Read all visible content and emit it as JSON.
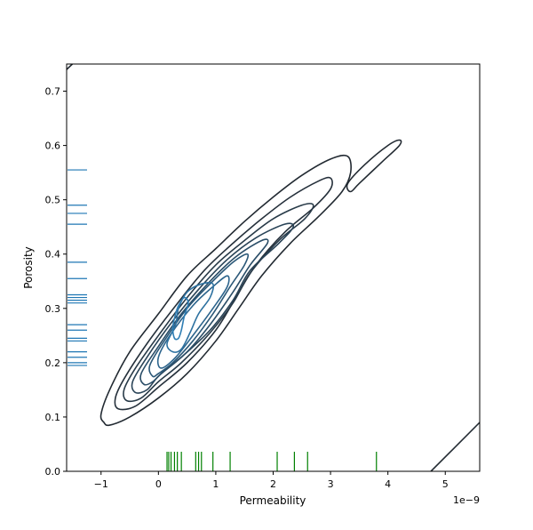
{
  "chart_data": {
    "type": "kde-contour",
    "xlabel": "Permeability",
    "ylabel": "Porosity",
    "x_offset_label": "1e−9",
    "xlim": [
      -1.6,
      5.6
    ],
    "ylim": [
      0.0,
      0.75
    ],
    "x_scale_factor": 1e-09,
    "grid": false,
    "xticks": [
      {
        "value": -1,
        "label": "−1"
      },
      {
        "value": 0,
        "label": "0"
      },
      {
        "value": 1,
        "label": "1"
      },
      {
        "value": 2,
        "label": "2"
      },
      {
        "value": 3,
        "label": "3"
      },
      {
        "value": 4,
        "label": "4"
      },
      {
        "value": 5,
        "label": "5"
      }
    ],
    "yticks": [
      {
        "value": 0.0,
        "label": "0.0"
      },
      {
        "value": 0.1,
        "label": "0.1"
      },
      {
        "value": 0.2,
        "label": "0.2"
      },
      {
        "value": 0.3,
        "label": "0.3"
      },
      {
        "value": 0.4,
        "label": "0.4"
      },
      {
        "value": 0.5,
        "label": "0.5"
      },
      {
        "value": 0.6,
        "label": "0.6"
      },
      {
        "value": 0.7,
        "label": "0.7"
      }
    ],
    "contour_colors": [
      "#222a32",
      "#25303b",
      "#283a48",
      "#294357",
      "#2a4d67",
      "#2b5878",
      "#2c648c",
      "#2d71a0",
      "#2f7eb4"
    ],
    "contours": [
      {
        "level": 0,
        "closed": true,
        "points": [
          [
            -0.95,
            0.09
          ],
          [
            -1.0,
            0.105
          ],
          [
            -0.85,
            0.15
          ],
          [
            -0.5,
            0.22
          ],
          [
            0.0,
            0.29
          ],
          [
            0.5,
            0.36
          ],
          [
            1.0,
            0.41
          ],
          [
            1.5,
            0.46
          ],
          [
            2.0,
            0.505
          ],
          [
            2.5,
            0.545
          ],
          [
            3.0,
            0.575
          ],
          [
            3.3,
            0.58
          ],
          [
            3.35,
            0.55
          ],
          [
            3.2,
            0.515
          ],
          [
            2.8,
            0.47
          ],
          [
            2.3,
            0.42
          ],
          [
            1.8,
            0.36
          ],
          [
            1.4,
            0.3
          ],
          [
            1.0,
            0.24
          ],
          [
            0.5,
            0.18
          ],
          [
            0.0,
            0.135
          ],
          [
            -0.5,
            0.1
          ],
          [
            -0.85,
            0.085
          ]
        ]
      },
      {
        "level": 0,
        "closed": true,
        "points": [
          [
            3.35,
            0.515
          ],
          [
            3.3,
            0.53
          ],
          [
            3.6,
            0.565
          ],
          [
            4.0,
            0.6
          ],
          [
            4.2,
            0.61
          ],
          [
            4.2,
            0.6
          ],
          [
            3.9,
            0.57
          ],
          [
            3.5,
            0.53
          ]
        ]
      },
      {
        "level": 0,
        "closed": false,
        "points": [
          [
            -1.6,
            0.74
          ],
          [
            -1.5,
            0.75
          ]
        ]
      },
      {
        "level": 0,
        "closed": false,
        "points": [
          [
            4.75,
            0.0
          ],
          [
            5.6,
            0.09
          ]
        ]
      },
      {
        "level": 1,
        "closed": true,
        "points": [
          [
            -0.7,
            0.115
          ],
          [
            -0.75,
            0.135
          ],
          [
            -0.6,
            0.17
          ],
          [
            -0.2,
            0.235
          ],
          [
            0.3,
            0.305
          ],
          [
            0.8,
            0.37
          ],
          [
            1.3,
            0.42
          ],
          [
            1.8,
            0.465
          ],
          [
            2.3,
            0.505
          ],
          [
            2.8,
            0.535
          ],
          [
            3.0,
            0.54
          ],
          [
            3.0,
            0.52
          ],
          [
            2.7,
            0.485
          ],
          [
            2.2,
            0.44
          ],
          [
            1.7,
            0.38
          ],
          [
            1.35,
            0.32
          ],
          [
            1.0,
            0.26
          ],
          [
            0.5,
            0.2
          ],
          [
            0.0,
            0.155
          ],
          [
            -0.4,
            0.12
          ]
        ]
      },
      {
        "level": 2,
        "closed": true,
        "points": [
          [
            -0.55,
            0.13
          ],
          [
            -0.6,
            0.15
          ],
          [
            -0.4,
            0.19
          ],
          [
            0.0,
            0.25
          ],
          [
            0.5,
            0.32
          ],
          [
            1.0,
            0.38
          ],
          [
            1.5,
            0.425
          ],
          [
            2.0,
            0.465
          ],
          [
            2.5,
            0.49
          ],
          [
            2.7,
            0.49
          ],
          [
            2.55,
            0.465
          ],
          [
            2.1,
            0.425
          ],
          [
            1.6,
            0.365
          ],
          [
            1.3,
            0.31
          ],
          [
            0.9,
            0.255
          ],
          [
            0.4,
            0.2
          ],
          [
            0.0,
            0.165
          ],
          [
            -0.3,
            0.135
          ]
        ]
      },
      {
        "level": 3,
        "closed": true,
        "points": [
          [
            -0.4,
            0.145
          ],
          [
            -0.45,
            0.165
          ],
          [
            -0.2,
            0.21
          ],
          [
            0.2,
            0.27
          ],
          [
            0.7,
            0.335
          ],
          [
            1.2,
            0.39
          ],
          [
            1.7,
            0.43
          ],
          [
            2.2,
            0.455
          ],
          [
            2.35,
            0.45
          ],
          [
            2.1,
            0.42
          ],
          [
            1.6,
            0.37
          ],
          [
            1.3,
            0.315
          ],
          [
            0.9,
            0.26
          ],
          [
            0.4,
            0.21
          ],
          [
            0.0,
            0.175
          ],
          [
            -0.2,
            0.15
          ]
        ]
      },
      {
        "level": 4,
        "closed": true,
        "points": [
          [
            -0.25,
            0.16
          ],
          [
            -0.3,
            0.18
          ],
          [
            0.0,
            0.23
          ],
          [
            0.4,
            0.29
          ],
          [
            0.9,
            0.35
          ],
          [
            1.35,
            0.395
          ],
          [
            1.8,
            0.425
          ],
          [
            1.9,
            0.42
          ],
          [
            1.6,
            0.38
          ],
          [
            1.3,
            0.33
          ],
          [
            0.9,
            0.27
          ],
          [
            0.5,
            0.22
          ],
          [
            0.1,
            0.185
          ],
          [
            -0.1,
            0.165
          ]
        ]
      },
      {
        "level": 5,
        "closed": true,
        "points": [
          [
            -0.1,
            0.175
          ],
          [
            -0.15,
            0.195
          ],
          [
            0.1,
            0.24
          ],
          [
            0.5,
            0.3
          ],
          [
            0.9,
            0.345
          ],
          [
            1.3,
            0.385
          ],
          [
            1.55,
            0.4
          ],
          [
            1.5,
            0.38
          ],
          [
            1.25,
            0.34
          ],
          [
            0.95,
            0.29
          ],
          [
            0.6,
            0.24
          ],
          [
            0.25,
            0.2
          ],
          [
            0.0,
            0.18
          ]
        ]
      },
      {
        "level": 6,
        "closed": true,
        "points": [
          [
            0.05,
            0.19
          ],
          [
            0.0,
            0.21
          ],
          [
            0.2,
            0.25
          ],
          [
            0.6,
            0.305
          ],
          [
            0.95,
            0.34
          ],
          [
            1.2,
            0.36
          ],
          [
            1.2,
            0.34
          ],
          [
            0.95,
            0.3
          ],
          [
            0.6,
            0.25
          ],
          [
            0.3,
            0.21
          ]
        ]
      },
      {
        "level": 7,
        "closed": true,
        "points": [
          [
            0.25,
            0.22
          ],
          [
            0.15,
            0.235
          ],
          [
            0.3,
            0.27
          ],
          [
            0.35,
            0.3
          ],
          [
            0.5,
            0.33
          ],
          [
            0.75,
            0.345
          ],
          [
            0.95,
            0.345
          ],
          [
            0.9,
            0.32
          ],
          [
            0.7,
            0.29
          ],
          [
            0.55,
            0.255
          ],
          [
            0.4,
            0.225
          ]
        ]
      },
      {
        "level": 8,
        "closed": true,
        "points": [
          [
            0.28,
            0.245
          ],
          [
            0.25,
            0.265
          ],
          [
            0.3,
            0.29
          ],
          [
            0.35,
            0.305
          ],
          [
            0.45,
            0.32
          ],
          [
            0.52,
            0.31
          ],
          [
            0.45,
            0.285
          ],
          [
            0.4,
            0.26
          ],
          [
            0.35,
            0.245
          ]
        ]
      }
    ],
    "rug_x": {
      "color": "#008000",
      "values": [
        0.15,
        0.18,
        0.22,
        0.28,
        0.33,
        0.4,
        0.65,
        0.7,
        0.75,
        0.95,
        1.25,
        2.07,
        2.37,
        2.6,
        3.8
      ]
    },
    "rug_y": {
      "color": "#1f77b4",
      "values": [
        0.195,
        0.2,
        0.21,
        0.22,
        0.24,
        0.245,
        0.26,
        0.27,
        0.31,
        0.315,
        0.32,
        0.325,
        0.355,
        0.385,
        0.455,
        0.475,
        0.49,
        0.555
      ]
    }
  }
}
